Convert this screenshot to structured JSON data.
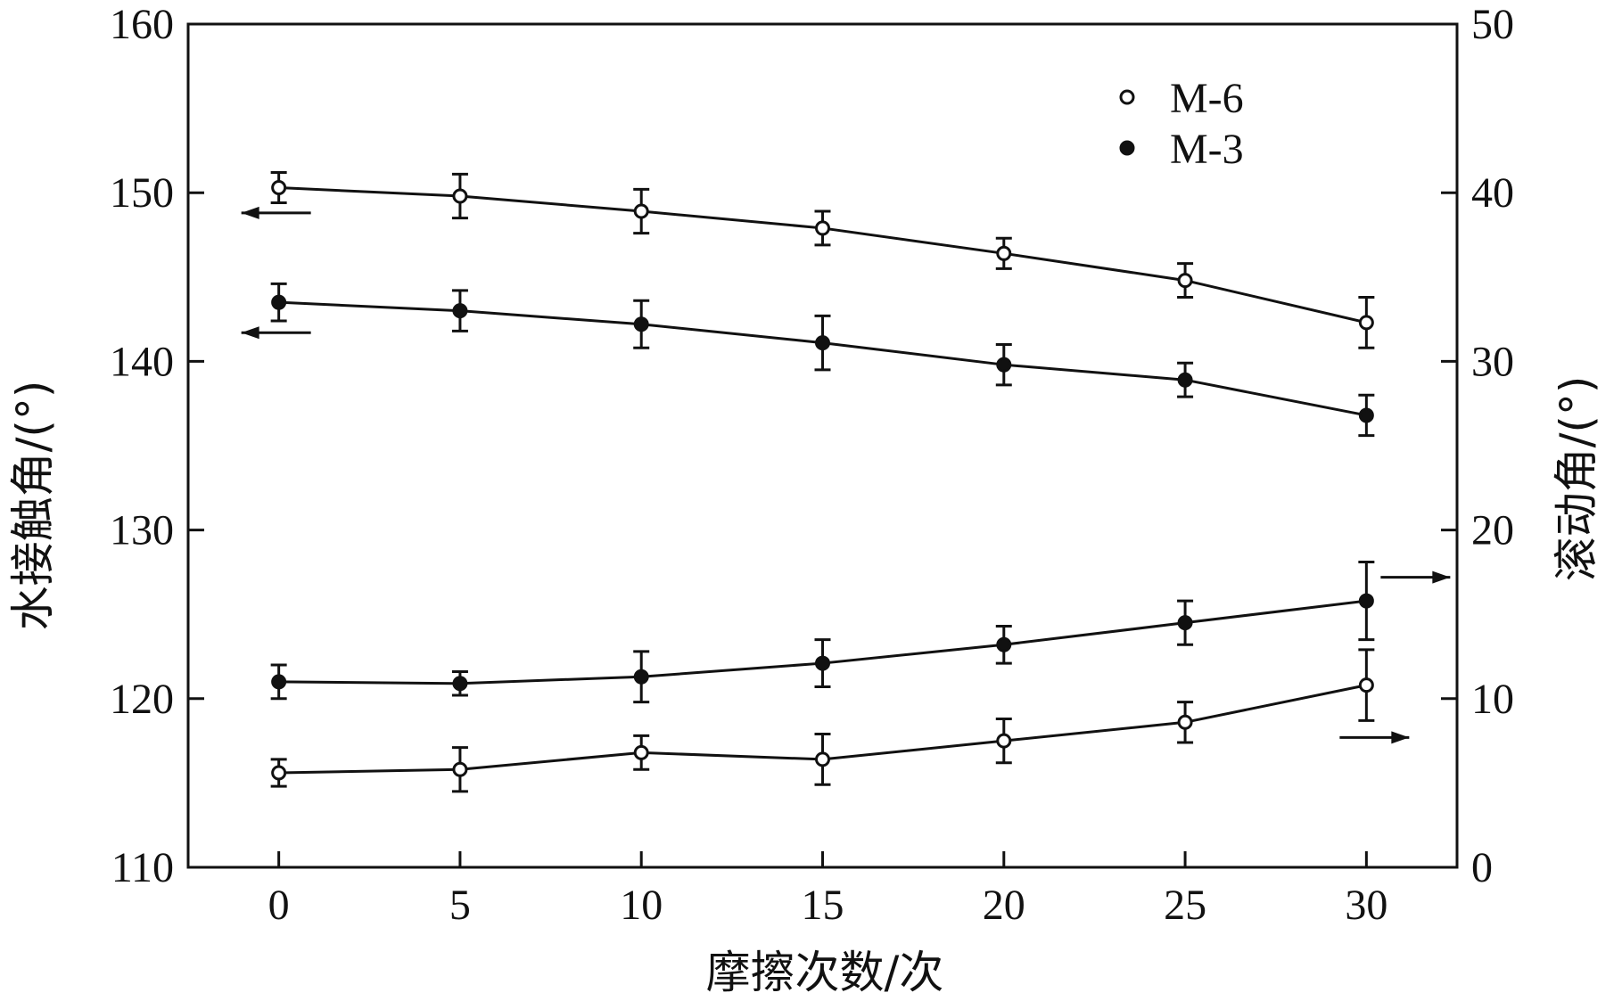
{
  "chart_data": {
    "type": "line",
    "xlabel": "摩擦次数/次",
    "ylabel_left": "水接触角/(°)",
    "ylabel_right": "滚动角/(°)",
    "x": [
      0,
      5,
      10,
      15,
      20,
      25,
      30
    ],
    "xlim": [
      -2.5,
      32.5
    ],
    "xticks": [
      0,
      5,
      10,
      15,
      20,
      25,
      30
    ],
    "ylim_left": [
      110,
      160
    ],
    "yticks_left": [
      110,
      120,
      130,
      140,
      150,
      160
    ],
    "ylim_right": [
      0,
      50
    ],
    "yticks_right": [
      0,
      10,
      20,
      30,
      40,
      50
    ],
    "legend": {
      "placement": "top-right",
      "entries": [
        {
          "label": "M-6",
          "marker": "open-circle"
        },
        {
          "label": "M-3",
          "marker": "filled-circle"
        }
      ]
    },
    "series": [
      {
        "name": "M-6",
        "axis": "left",
        "marker": "open",
        "quantity": "contact-angle",
        "values": [
          150.3,
          149.8,
          148.9,
          147.9,
          146.4,
          144.8,
          142.3
        ],
        "errors": [
          0.9,
          1.3,
          1.3,
          1.0,
          0.9,
          1.0,
          1.5
        ]
      },
      {
        "name": "M-3",
        "axis": "left",
        "marker": "filled",
        "quantity": "contact-angle",
        "values": [
          143.5,
          143.0,
          142.2,
          141.1,
          139.8,
          138.9,
          136.8
        ],
        "errors": [
          1.1,
          1.2,
          1.4,
          1.6,
          1.2,
          1.0,
          1.2
        ]
      },
      {
        "name": "M-3",
        "axis": "right",
        "marker": "filled",
        "quantity": "sliding-angle",
        "values": [
          11.0,
          10.9,
          11.3,
          12.1,
          13.2,
          14.5,
          15.8
        ],
        "errors": [
          1.0,
          0.7,
          1.5,
          1.4,
          1.1,
          1.3,
          2.3
        ]
      },
      {
        "name": "M-6",
        "axis": "right",
        "marker": "open",
        "quantity": "sliding-angle",
        "values": [
          5.6,
          5.8,
          6.8,
          6.4,
          7.5,
          8.6,
          10.8
        ],
        "errors": [
          0.8,
          1.3,
          1.0,
          1.5,
          1.3,
          1.2,
          2.1
        ]
      }
    ],
    "annotations": [
      {
        "type": "arrow",
        "direction": "left",
        "x": 0,
        "y": 148.8,
        "axis": "left"
      },
      {
        "type": "arrow",
        "direction": "left",
        "x": 0,
        "y": 141.7,
        "axis": "left"
      },
      {
        "type": "arrow",
        "direction": "right",
        "x": 30,
        "y": 17.2,
        "axis": "right"
      },
      {
        "type": "arrow",
        "direction": "right",
        "x": 30,
        "y": 7.7,
        "axis": "right"
      }
    ],
    "grid": false
  }
}
